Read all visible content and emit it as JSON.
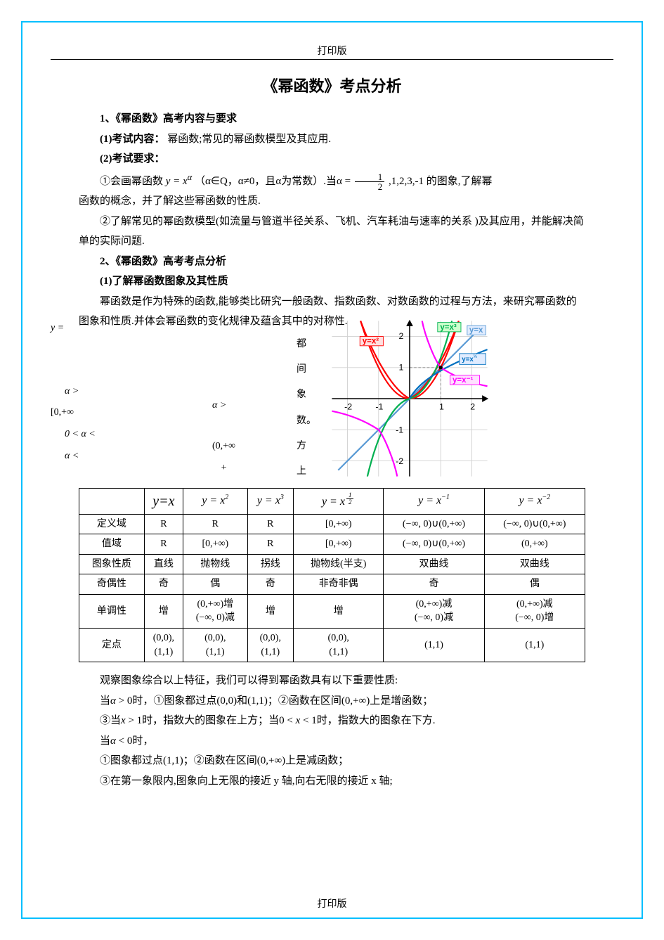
{
  "header": "打印版",
  "footer": "打印版",
  "title": "《幂函数》考点分析",
  "section1": {
    "heading": "1、《幂函数》高考内容与要求",
    "sub1": "(1)考试内容：",
    "sub1_text": "幂函数;常见的幂函数模型及其应用.",
    "sub2": "(2)考试要求：",
    "req1_a": "①会画幂函数",
    "req1_formula": "y = xᵅ",
    "req1_b": "（α∈Q，α≠0，且α为常数）.当α =",
    "req1_c": ",1,2,3,-1 的图象,了解幂",
    "req1_cont": "函数的概念，并了解这些幂函数的性质.",
    "req2": "②了解常见的幂函数模型(如流量与管道半径关系、飞机、汽车耗油与速率的关系 )及其应用，并能解决简单的实际问题."
  },
  "section2": {
    "heading": "2、《幂函数》高考考点分析",
    "sub1": "(1)了解幂函数图象及其性质",
    "para": "幂函数是作为特殊的函数,能够类比研究一般函数、指数函数、对数函数的过程与方法，来研究幂函数的图象和性质.并体会幂函数的变化规律及蕴含其中的对称性."
  },
  "scatter_text": {
    "l1": "y =",
    "l2": "α >",
    "l3": "[0,+∞",
    "l4": "0 < α <",
    "l5": "α <",
    "l6": "α >",
    "l7": "(0,+∞",
    "l8": "+"
  },
  "vlabels": [
    "都",
    "间",
    "象",
    "数。",
    "方",
    "上"
  ],
  "chart": {
    "background": "#ffffff",
    "axis_color": "#000000",
    "grid_color": "#d0d0d0",
    "xlim": [
      -2.5,
      2.5
    ],
    "ylim": [
      -2.5,
      2.5
    ],
    "ticks": [
      -2,
      -1,
      1,
      2
    ],
    "curves": [
      {
        "label": "y=x³",
        "color": "#00b050",
        "type": "cubic"
      },
      {
        "label": "y=x",
        "color": "#5b9bd5",
        "type": "linear"
      },
      {
        "label": "y=x²",
        "color": "#ff0000",
        "type": "parabola"
      },
      {
        "label": "y=x^(1/2)",
        "color": "#0070c0",
        "type": "sqrt"
      },
      {
        "label": "y=x⁻¹",
        "color": "#ff00ff",
        "type": "reciprocal"
      }
    ],
    "label_fontsize": 10
  },
  "table": {
    "headers": [
      "",
      "y=x",
      "y = x²",
      "y = x³",
      "y = x^(1/2)",
      "y = x⁻¹",
      "y = x⁻²"
    ],
    "rows": [
      {
        "label": "定义域",
        "cells": [
          "R",
          "R",
          "R",
          "[0,+∞)",
          "(−∞, 0)∪(0,+∞)",
          "(−∞, 0)∪(0,+∞)"
        ]
      },
      {
        "label": "值域",
        "cells": [
          "R",
          "[0,+∞)",
          "R",
          "[0,+∞)",
          "(−∞, 0)∪(0,+∞)",
          "(0,+∞)"
        ]
      },
      {
        "label": "图象性质",
        "cells": [
          "直线",
          "抛物线",
          "拐线",
          "抛物线(半支)",
          "双曲线",
          "双曲线"
        ]
      },
      {
        "label": "奇偶性",
        "cells": [
          "奇",
          "偶",
          "奇",
          "非奇非偶",
          "奇",
          "偶"
        ]
      },
      {
        "label": "单调性",
        "cells": [
          "增",
          "(0,+∞)增\n(−∞, 0)减",
          "增",
          "增",
          "(0,+∞)减\n(−∞, 0)减",
          "(0,+∞)减\n(−∞, 0)增"
        ]
      },
      {
        "label": "定点",
        "cells": [
          "(0,0),\n(1,1)",
          "(0,0),\n(1,1)",
          "(0,0),\n(1,1)",
          "(0,0),\n(1,1)",
          "(1,1)",
          "(1,1)"
        ]
      }
    ]
  },
  "conclusion": {
    "intro": "观察图象综合以上特征，我们可以得到幂函数具有以下重要性质:",
    "p1": "当α > 0时，①图象都过点(0,0)和(1,1)；②函数在区间(0,+∞)上是增函数；",
    "p2": "③当x > 1时，指数大的图象在上方；当0 < x < 1时，指数大的图象在下方.",
    "p3": "当α < 0时，",
    "p4": "①图象都过点(1,1)；②函数在区间(0,+∞)上是减函数；",
    "p5": "③在第一象限内,图象向上无限的接近 y 轴,向右无限的接近 x 轴;"
  }
}
